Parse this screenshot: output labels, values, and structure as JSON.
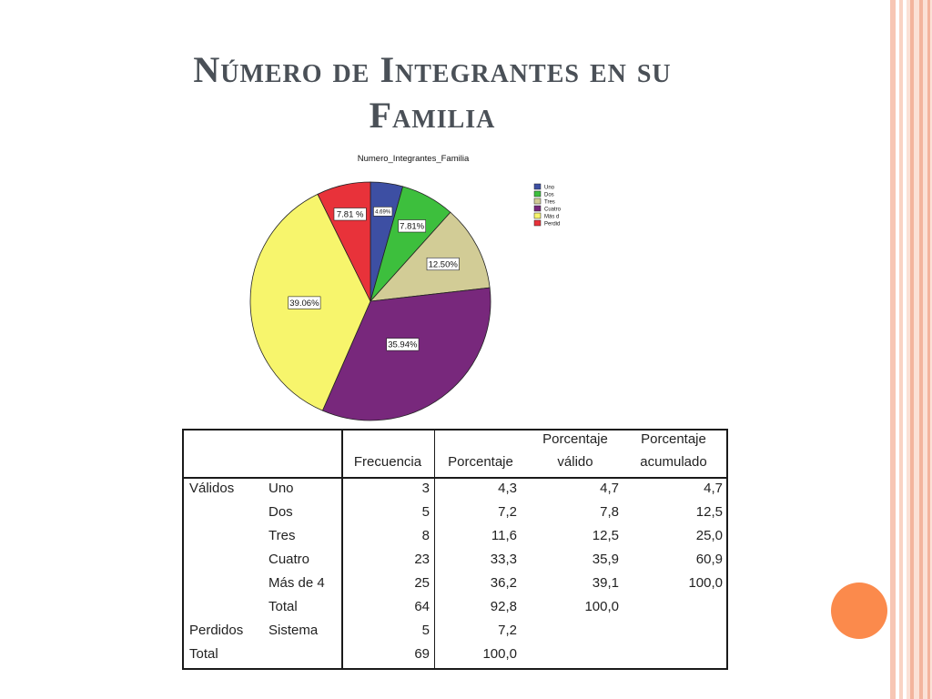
{
  "slide": {
    "title_line1": "Número de Integrantes en su",
    "title_line2": "Familia"
  },
  "colors": {
    "title": "#4a5057",
    "accent_dot": "#fb8a4c",
    "stripe": "#f7c6b4"
  },
  "chart_data": {
    "type": "pie",
    "title": "Numero_Integrantes_Familia",
    "legend_position": "right",
    "slices": [
      {
        "label": "Uno",
        "value": 4.69,
        "pct_label": "4.69%",
        "color": "#3d4fa3"
      },
      {
        "label": "Dos",
        "value": 7.81,
        "pct_label": "7.81%",
        "color": "#3dbf3d"
      },
      {
        "label": "Tres",
        "value": 12.5,
        "pct_label": "12.50%",
        "color": "#d2cc96"
      },
      {
        "label": "Cuatro",
        "value": 35.94,
        "pct_label": "35.94%",
        "color": "#78287c"
      },
      {
        "label": "Más d",
        "value": 39.06,
        "pct_label": "39.06%",
        "color": "#f7f56c"
      },
      {
        "label": "Perdid",
        "value": 7.81,
        "pct_label": "7.81 %",
        "color": "#e8323a"
      }
    ],
    "legend_labels": [
      "Uno",
      "Dos",
      "Tres",
      "Cuatro",
      "Más d",
      "Perdid"
    ]
  },
  "table": {
    "headers": {
      "frecuencia": "Frecuencia",
      "porcentaje": "Porcentaje",
      "valido_1": "Porcentaje",
      "valido_2": "válido",
      "acumulado_1": "Porcentaje",
      "acumulado_2": "acumulado"
    },
    "rows": [
      {
        "group": "Válidos",
        "label": "Uno",
        "freq": "3",
        "pct": "4,3",
        "valid": "4,7",
        "cum": "4,7"
      },
      {
        "group": "",
        "label": "Dos",
        "freq": "5",
        "pct": "7,2",
        "valid": "7,8",
        "cum": "12,5"
      },
      {
        "group": "",
        "label": "Tres",
        "freq": "8",
        "pct": "11,6",
        "valid": "12,5",
        "cum": "25,0"
      },
      {
        "group": "",
        "label": "Cuatro",
        "freq": "23",
        "pct": "33,3",
        "valid": "35,9",
        "cum": "60,9"
      },
      {
        "group": "",
        "label": "Más de 4",
        "freq": "25",
        "pct": "36,2",
        "valid": "39,1",
        "cum": "100,0"
      },
      {
        "group": "",
        "label": "Total",
        "freq": "64",
        "pct": "92,8",
        "valid": "100,0",
        "cum": ""
      },
      {
        "group": "Perdidos",
        "label": "Sistema",
        "freq": "5",
        "pct": "7,2",
        "valid": "",
        "cum": ""
      },
      {
        "group": "Total",
        "label": "",
        "freq": "69",
        "pct": "100,0",
        "valid": "",
        "cum": ""
      }
    ]
  }
}
